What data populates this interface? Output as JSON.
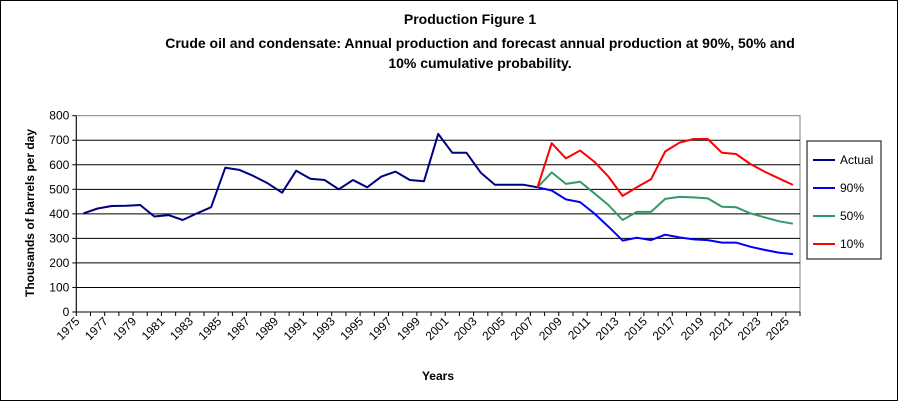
{
  "chart_data": {
    "type": "line",
    "title": "Production Figure 1",
    "subtitle_lines": [
      "Crude oil and condensate: Annual production and forecast annual production at 90%, 50% and",
      "10% cumulative probability."
    ],
    "xlabel": "Years",
    "ylabel": "Thousands of barrels per day",
    "ylim": [
      0,
      800
    ],
    "yticks": [
      0,
      100,
      200,
      300,
      400,
      500,
      600,
      700,
      800
    ],
    "xticklabels": [
      "1975",
      "1977",
      "1979",
      "1981",
      "1983",
      "1985",
      "1987",
      "1989",
      "1991",
      "1993",
      "1995",
      "1997",
      "1999",
      "2001",
      "2003",
      "2005",
      "2007",
      "2009",
      "2011",
      "2013",
      "2015",
      "2017",
      "2019",
      "2021",
      "2023",
      "2025"
    ],
    "x_first": 1975,
    "x_last": 2025,
    "grid": true,
    "legend_position": "right",
    "series": [
      {
        "name": "Actual",
        "color": "#000080",
        "x_start": 1975,
        "values": [
          402,
          422,
          432,
          433,
          436,
          389,
          395,
          375,
          402,
          427,
          588,
          579,
          554,
          524,
          486,
          576,
          543,
          538,
          500,
          538,
          508,
          552,
          572,
          538,
          533,
          726,
          649,
          649,
          568,
          519,
          519,
          519,
          508
        ]
      },
      {
        "name": "90%",
        "color": "#0000FF",
        "x_start": 2007,
        "values": [
          508,
          495,
          459,
          448,
          402,
          348,
          291,
          303,
          293,
          315,
          304,
          296,
          293,
          283,
          283,
          266,
          253,
          242,
          236
        ]
      },
      {
        "name": "50%",
        "color": "#339966",
        "x_start": 2007,
        "values": [
          508,
          569,
          522,
          531,
          484,
          436,
          375,
          408,
          408,
          461,
          469,
          467,
          463,
          429,
          427,
          402,
          386,
          370,
          360
        ]
      },
      {
        "name": "10%",
        "color": "#FF0000",
        "x_start": 2007,
        "values": [
          508,
          688,
          626,
          658,
          613,
          552,
          473,
          508,
          541,
          654,
          690,
          705,
          705,
          649,
          644,
          603,
          572,
          545,
          518
        ]
      }
    ]
  }
}
